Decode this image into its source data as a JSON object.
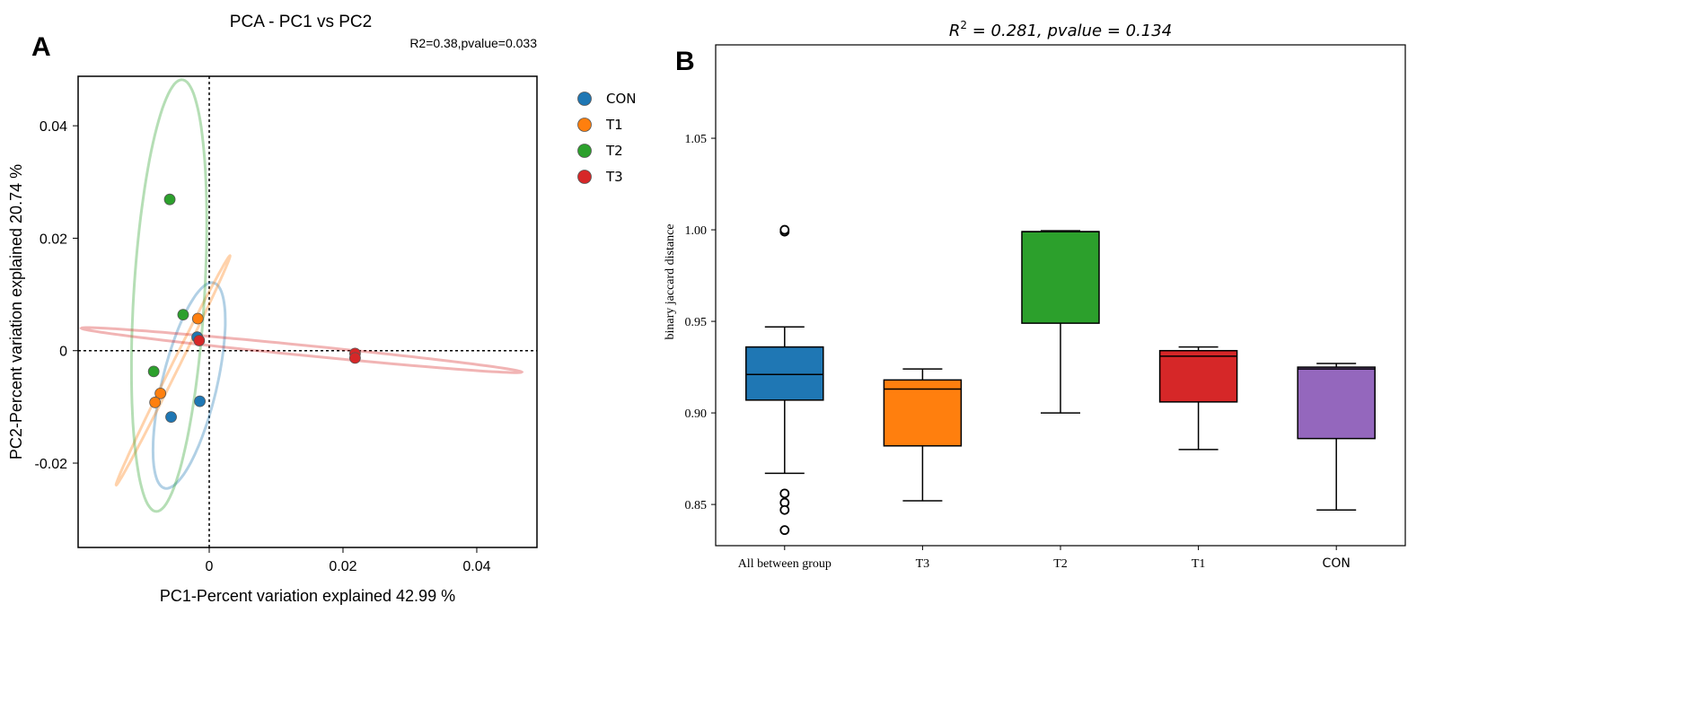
{
  "chart_data": [
    {
      "type": "scatter",
      "panel_label": "A",
      "title": "PCA - PC1 vs PC2",
      "annotation": "R2=0.38,pvalue=0.033",
      "xlabel": "PC1-Percent variation explained 42.99 %",
      "ylabel": "PC2-Percent variation explained 20.74 %",
      "xlim": [
        -0.0196,
        0.049
      ],
      "ylim": [
        -0.035,
        0.0488
      ],
      "xticks": [
        {
          "v": 0,
          "label": "0"
        },
        {
          "v": 0.02,
          "label": "0.02"
        },
        {
          "v": 0.04,
          "label": "0.04"
        }
      ],
      "yticks": [
        {
          "v": -0.02,
          "label": "-0.02"
        },
        {
          "v": 0,
          "label": "0"
        },
        {
          "v": 0.02,
          "label": "0.02"
        },
        {
          "v": 0.04,
          "label": "0.04"
        }
      ],
      "legend_position": "outside-right",
      "series": [
        {
          "name": "CON",
          "color": "#1f77b4",
          "points": [
            [
              -0.0018,
              0.0024
            ],
            [
              -0.0014,
              -0.009
            ],
            [
              -0.0057,
              -0.0118
            ]
          ],
          "ellipse": {
            "center": [
              -0.003,
              -0.0062
            ],
            "u": [
              0.0034,
              0.0183
            ],
            "v": [
              0.0042,
              0
            ]
          }
        },
        {
          "name": "T1",
          "color": "#ff7f0e",
          "points": [
            [
              -0.0017,
              0.0057
            ],
            [
              -0.0073,
              -0.0076
            ],
            [
              -0.0081,
              -0.0092
            ]
          ],
          "ellipse": {
            "center": [
              -0.0054,
              -0.0035
            ],
            "u": [
              0.0085,
              0.0204
            ],
            "v": [
              0.0006,
              0
            ]
          }
        },
        {
          "name": "T2",
          "color": "#2ca02c",
          "points": [
            [
              -0.0059,
              0.0269
            ],
            [
              -0.0039,
              0.0064
            ],
            [
              -0.0083,
              -0.0037
            ]
          ],
          "ellipse": {
            "center": [
              -0.006,
              0.0098
            ],
            "u": [
              0.0019,
              0.0384
            ],
            "v": [
              0.0053,
              0
            ]
          }
        },
        {
          "name": "T3",
          "color": "#d62728",
          "points": [
            [
              -0.0015,
              0.0018
            ],
            [
              0.0218,
              -0.0005
            ],
            [
              0.0218,
              -0.0013
            ]
          ],
          "ellipse": {
            "center": [
              0.0138,
              0.0001
            ],
            "u": [
              0.0329,
              -0.0039
            ],
            "v": [
              0,
              0.0009
            ]
          }
        }
      ]
    },
    {
      "type": "box",
      "panel_label": "B",
      "title_main": "R",
      "title_sup": "2",
      "title_rest": " = 0.281, pvalue = 0.134",
      "ylabel": "binary jaccard distance",
      "ylim": [
        0.8275,
        1.101
      ],
      "yticks": [
        {
          "v": 0.85,
          "label": "0.85"
        },
        {
          "v": 0.9,
          "label": "0.90"
        },
        {
          "v": 0.95,
          "label": "0.95"
        },
        {
          "v": 1.0,
          "label": "1.00"
        },
        {
          "v": 1.05,
          "label": "1.05"
        }
      ],
      "categories": [
        "All between group",
        "T3",
        "T2",
        "T1",
        "CON"
      ],
      "boxes": [
        {
          "name": "All between group",
          "color": "#1f77b4",
          "whislo": 0.867,
          "q1": 0.907,
          "med": 0.921,
          "q3": 0.936,
          "whishi": 0.947,
          "fliers": [
            0.999,
            1.0,
            0.856,
            0.851,
            0.847,
            0.836
          ]
        },
        {
          "name": "T3",
          "color": "#ff7f0e",
          "whislo": 0.852,
          "q1": 0.882,
          "med": 0.913,
          "q3": 0.918,
          "whishi": 0.924,
          "fliers": []
        },
        {
          "name": "T2",
          "color": "#2ca02c",
          "whislo": 0.9,
          "q1": 0.949,
          "med": 0.999,
          "q3": 0.999,
          "whishi": 0.9995,
          "fliers": []
        },
        {
          "name": "T1",
          "color": "#d62728",
          "whislo": 0.88,
          "q1": 0.906,
          "med": 0.931,
          "q3": 0.934,
          "whishi": 0.936,
          "fliers": []
        },
        {
          "name": "CON",
          "color": "#9467bd",
          "whislo": 0.847,
          "q1": 0.886,
          "med": 0.924,
          "q3": 0.925,
          "whishi": 0.927,
          "fliers": []
        }
      ]
    }
  ]
}
